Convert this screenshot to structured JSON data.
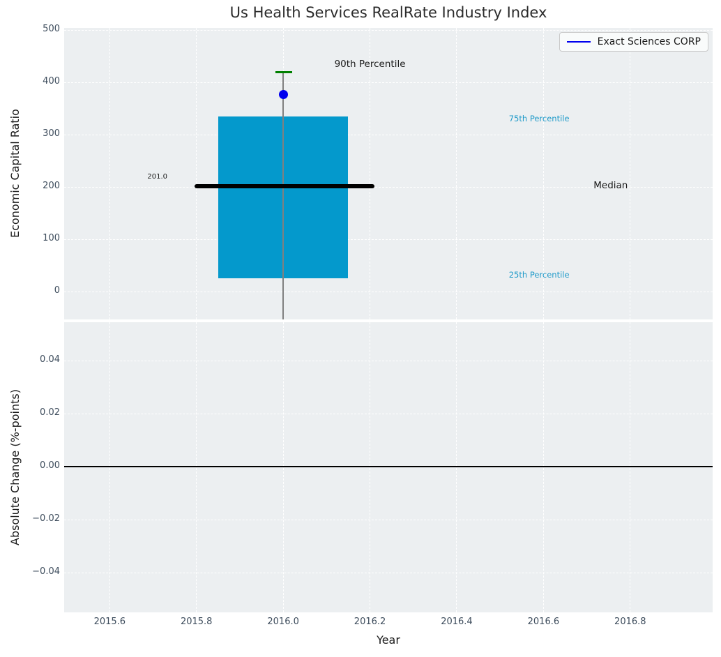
{
  "title": "Us Health Services RealRate Industry Index",
  "legend": {
    "label": "Exact Sciences CORP"
  },
  "colors": {
    "axes_bg": "#eceff1",
    "grid": "#ffffff",
    "tick_label": "#3d4c5c",
    "title": "#2b2b2b",
    "axis_label": "#1a1a1a",
    "box_fill": "#0499cc",
    "median_line": "#000000",
    "percentile_cap": "#008000",
    "company_dot": "#0000ee",
    "whisker": "#808080",
    "annotation_cyan": "#1f9ac9",
    "annotation_dark": "#1a1a1a",
    "zero_line": "#000000",
    "legend_line": "#0000ee"
  },
  "chart_data": {
    "type": "box",
    "title": "Us Health Services RealRate Industry Index",
    "xlabel": "Year",
    "x": {
      "xlim": [
        2015.495,
        2016.99
      ],
      "ticks": [
        {
          "v": 2015.6,
          "label": "2015.6"
        },
        {
          "v": 2015.8,
          "label": "2015.8"
        },
        {
          "v": 2016.0,
          "label": "2016.0"
        },
        {
          "v": 2016.2,
          "label": "2016.2"
        },
        {
          "v": 2016.4,
          "label": "2016.4"
        },
        {
          "v": 2016.6,
          "label": "2016.6"
        },
        {
          "v": 2016.8,
          "label": "2016.8"
        }
      ]
    },
    "panels": [
      {
        "name": "economic-capital-ratio",
        "ylabel": "Economic Capital Ratio",
        "ylim": [
          -53.3,
          504
        ],
        "yticks": [
          {
            "v": 0,
            "label": "0"
          },
          {
            "v": 100,
            "label": "100"
          },
          {
            "v": 200,
            "label": "200"
          },
          {
            "v": 300,
            "label": "300"
          },
          {
            "v": 400,
            "label": "400"
          },
          {
            "v": 500,
            "label": "500"
          }
        ],
        "box": {
          "year": 2016.0,
          "p25": 25,
          "median": 201.0,
          "p75": 335,
          "p90": 420,
          "x_range": [
            2015.85,
            2016.15
          ],
          "median_x_range": [
            2015.795,
            2016.21
          ],
          "cap_x_range": [
            2015.982,
            2016.021
          ],
          "whisker_x": 2016.0,
          "whisker_clipped_low": true
        },
        "company_point": {
          "name": "Exact Sciences CORP",
          "x": 2016.0,
          "y": 377
        },
        "annotations": [
          {
            "text": "90th Percentile",
            "x": 2016.2,
            "y": 432,
            "color": "dark",
            "size": 13.5
          },
          {
            "text": "75th Percentile",
            "x": 2016.59,
            "y": 328,
            "color": "cyan",
            "size": 11.5
          },
          {
            "text": "201.0",
            "x": 2015.71,
            "y": 217,
            "color": "dark",
            "size": 10
          },
          {
            "text": "Median",
            "x": 2016.755,
            "y": 200,
            "color": "dark",
            "size": 13.5
          },
          {
            "text": "25th Percentile",
            "x": 2016.59,
            "y": 30,
            "color": "cyan",
            "size": 11.5
          }
        ]
      },
      {
        "name": "absolute-change",
        "ylabel": "Absolute Change (%-points)",
        "ylim": [
          -0.055,
          0.0545
        ],
        "yticks": [
          {
            "v": 0.04,
            "label": "0.04"
          },
          {
            "v": 0.02,
            "label": "0.02"
          },
          {
            "v": 0.0,
            "label": "0.00"
          },
          {
            "v": -0.02,
            "label": "−0.02"
          },
          {
            "v": -0.04,
            "label": "−0.04"
          }
        ],
        "zero_line": 0.0
      }
    ]
  }
}
